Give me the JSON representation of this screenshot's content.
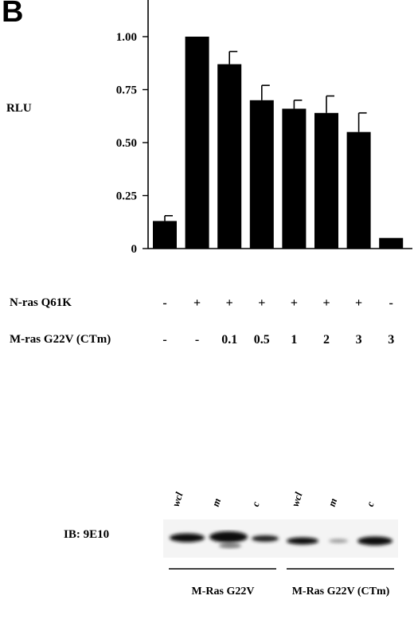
{
  "panel_letter": "B",
  "chart_data": {
    "type": "bar",
    "ylabel": "RLU",
    "ylim": [
      0,
      1.15
    ],
    "yticks": [
      "0",
      "0.25",
      "0.50",
      "0.75",
      "1.00"
    ],
    "ytick_values": [
      0,
      0.25,
      0.5,
      0.75,
      1.0
    ],
    "values": [
      0.13,
      1.0,
      0.87,
      0.7,
      0.66,
      0.64,
      0.55,
      0.05
    ],
    "errors": [
      0.025,
      0.0,
      0.06,
      0.07,
      0.04,
      0.08,
      0.09,
      0.0
    ],
    "bar_color": "#000000",
    "grid": false
  },
  "conditions": {
    "nras_label": "N-ras Q61K",
    "nras_values": [
      "-",
      "+",
      "+",
      "+",
      "+",
      "+",
      "+",
      "-"
    ],
    "mras_label": "M-ras G22V (CTm)",
    "mras_values": [
      "-",
      "-",
      "0.1",
      "0.5",
      "1",
      "2",
      "3",
      "3"
    ]
  },
  "blot": {
    "label": "IB: 9E10",
    "lanes": [
      "wcl",
      "m",
      "c",
      "wcl",
      "m",
      "c"
    ],
    "groups": [
      "M-Ras G22V",
      "M-Ras G22V (CTm)"
    ]
  }
}
